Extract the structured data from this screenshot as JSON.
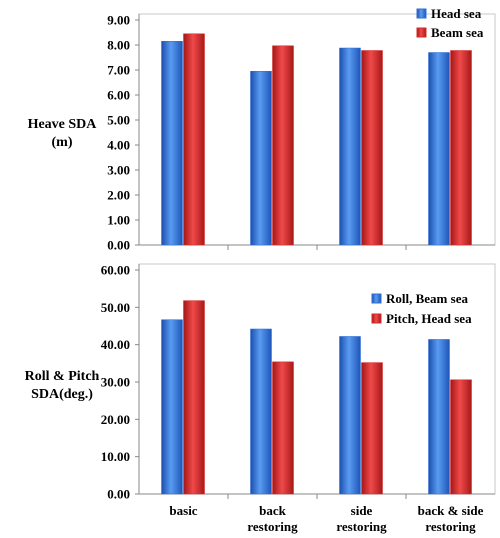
{
  "chart_data": [
    {
      "type": "bar",
      "title": "",
      "xlabel": "",
      "ylabel": [
        "Heave SDA",
        "(m)"
      ],
      "categories": [
        "basic",
        "back restoring",
        "side restoring",
        "back & side restoring"
      ],
      "series": [
        {
          "name": "Head sea",
          "color": "#2f6fd6",
          "values": [
            8.15,
            6.95,
            7.88,
            7.7
          ]
        },
        {
          "name": "Beam sea",
          "color": "#d42a2a",
          "values": [
            8.45,
            7.97,
            7.78,
            7.78
          ]
        }
      ],
      "ylim": [
        0,
        9
      ],
      "yticks": [
        "0.00",
        "1.00",
        "2.00",
        "3.00",
        "4.00",
        "5.00",
        "6.00",
        "7.00",
        "8.00",
        "9.00"
      ],
      "grid": false,
      "legend": "top-right"
    },
    {
      "type": "bar",
      "title": "",
      "xlabel": "",
      "ylabel": [
        "Roll & Pitch",
        "SDA(deg.)"
      ],
      "categories": [
        [
          "basic"
        ],
        [
          "back",
          "restoring"
        ],
        [
          "side",
          "restoring"
        ],
        [
          "back & side",
          "restoring"
        ]
      ],
      "series": [
        {
          "name": "Roll, Beam sea",
          "color": "#2f6fd6",
          "values": [
            46.7,
            44.2,
            42.2,
            41.4
          ]
        },
        {
          "name": "Pitch, Head sea",
          "color": "#d42a2a",
          "values": [
            51.8,
            35.4,
            35.2,
            30.6
          ]
        }
      ],
      "ylim": [
        0,
        60
      ],
      "yticks": [
        "0.00",
        "10.00",
        "20.00",
        "30.00",
        "40.00",
        "50.00",
        "60.00"
      ],
      "grid": false,
      "legend": "top-right"
    }
  ]
}
